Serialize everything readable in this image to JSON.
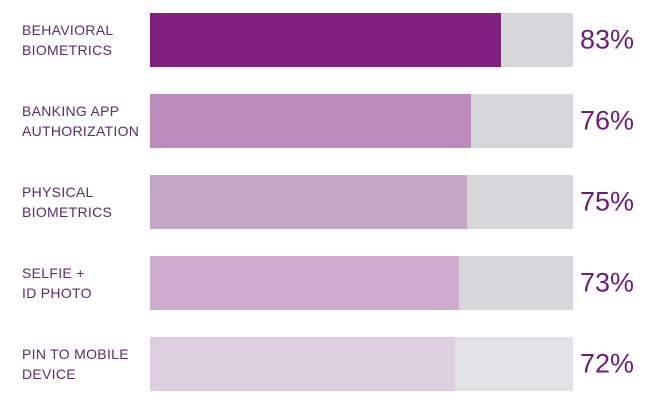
{
  "chart_data": {
    "type": "bar",
    "orientation": "horizontal",
    "categories": [
      "BEHAVIORAL\nBIOMETRICS",
      "BANKING APP\nAUTHORIZATION",
      "PHYSICAL\nBIOMETRICS",
      "SELFIE +\nID PHOTO",
      "PIN TO MOBILE\nDEVICE"
    ],
    "values": [
      83,
      76,
      75,
      73,
      72
    ],
    "value_labels": [
      "83%",
      "76%",
      "75%",
      "73%",
      "72%"
    ],
    "xlim": [
      0,
      100
    ],
    "grid": false,
    "legend": "none"
  },
  "colors": {
    "fills": [
      "#7f1f7e",
      "#bc8bbb",
      "#c6a6c6",
      "#d0abd0",
      "#ddcfdf"
    ],
    "tracks": [
      "#d7d7da",
      "#d7d7da",
      "#d7d7da",
      "#d7d7da",
      "#e3e3e6"
    ],
    "text": "#5a2c6a",
    "value_text": "#6e1b78"
  }
}
